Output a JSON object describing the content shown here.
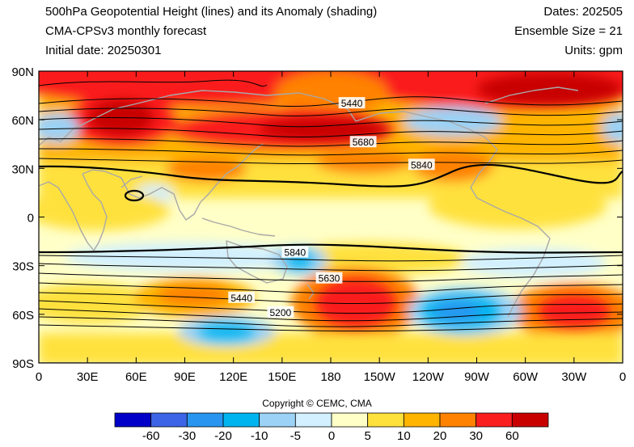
{
  "header": {
    "title_line1": "500hPa Geopotential Height (lines) and its Anomaly (shading)",
    "title_line2": "CMA-CPSv3 monthly forecast",
    "title_line3": "Initial date: 20250301",
    "dates": "Dates: 202505",
    "ensemble": "Ensemble Size = 21",
    "units": "Units: gpm"
  },
  "map": {
    "projection": "cylindrical equidistant",
    "lat_range": [
      -90,
      90
    ],
    "lon_range": [
      0,
      360
    ],
    "lat_ticks": [
      "90N",
      "60N",
      "30N",
      "0",
      "30S",
      "60S",
      "90S"
    ],
    "lon_ticks": [
      "0",
      "30E",
      "60E",
      "90E",
      "120E",
      "150E",
      "180",
      "150W",
      "120W",
      "90W",
      "60W",
      "30W",
      "0"
    ],
    "coastline_color": "#a8a8a8",
    "contour_color": "#000000",
    "contour_labels": [
      {
        "text": "5440",
        "lon": 193,
        "lat": 70
      },
      {
        "text": "5680",
        "lon": 200,
        "lat": 46
      },
      {
        "text": "5840",
        "lon": 236,
        "lat": 32
      },
      {
        "text": "5840",
        "lon": 158,
        "lat": -22
      },
      {
        "text": "5630",
        "lon": 179,
        "lat": -38
      },
      {
        "text": "5440",
        "lon": 125,
        "lat": -50
      },
      {
        "text": "5200",
        "lon": 149,
        "lat": -59
      }
    ]
  },
  "colorbar": {
    "copyright": "Copyright © CEMC, CMA",
    "colors": [
      "#0000c8",
      "#3c64e6",
      "#2896f0",
      "#00b4f0",
      "#9bd2f5",
      "#d2f0ff",
      "#ffffc8",
      "#ffe13c",
      "#ffb400",
      "#ff8200",
      "#fa1e1e",
      "#c80000"
    ],
    "labels": [
      "-60",
      "-30",
      "-20",
      "-10",
      "-5",
      "0",
      "5",
      "10",
      "20",
      "30",
      "60"
    ]
  }
}
